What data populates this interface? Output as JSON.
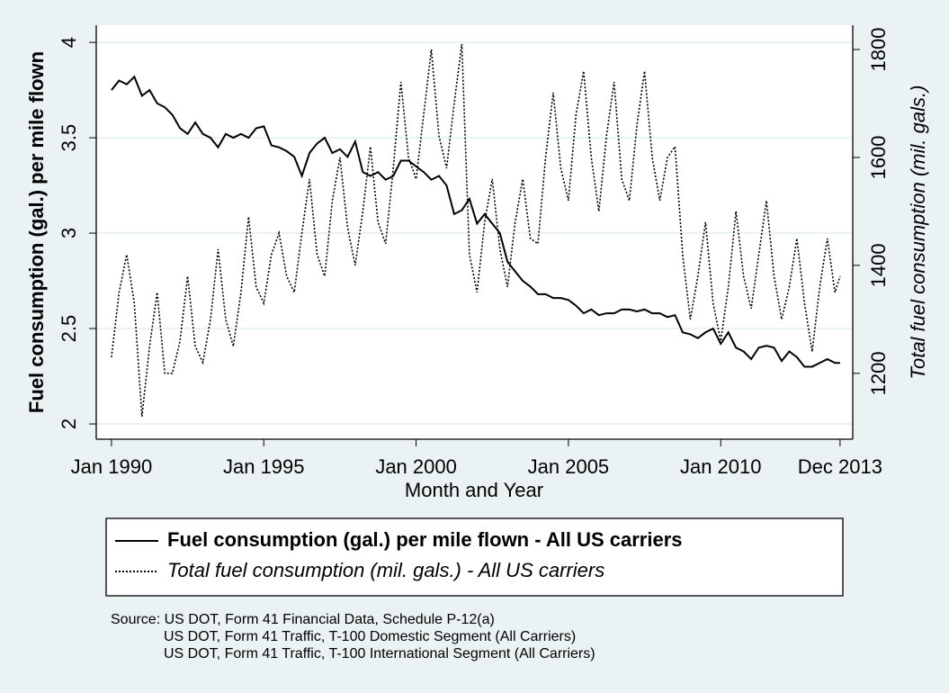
{
  "chart_data": {
    "type": "line",
    "y_label": "Fuel consumption (gal.) per mile flown",
    "y2_label": "Total fuel consumption (mil. gals.)",
    "x_label": "Month and Year",
    "notes": [
      "Source: US DOT, Form 41 Financial Data, Schedule P-12(a)",
      "US DOT, Form 41 Traffic, T-100 Domestic Segment (All Carriers)",
      "US DOT, Form 41 Traffic, T-100 International Segment (All Carriers)"
    ],
    "x": [
      "1990-01",
      "1990-04",
      "1990-07",
      "1990-10",
      "1991-01",
      "1991-04",
      "1991-07",
      "1991-10",
      "1992-01",
      "1992-04",
      "1992-07",
      "1992-10",
      "1993-01",
      "1993-04",
      "1993-07",
      "1993-10",
      "1994-01",
      "1994-04",
      "1994-07",
      "1994-10",
      "1995-01",
      "1995-04",
      "1995-07",
      "1995-10",
      "1996-01",
      "1996-04",
      "1996-07",
      "1996-10",
      "1997-01",
      "1997-04",
      "1997-07",
      "1997-10",
      "1998-01",
      "1998-04",
      "1998-07",
      "1998-10",
      "1999-01",
      "1999-04",
      "1999-07",
      "1999-10",
      "2000-01",
      "2000-04",
      "2000-07",
      "2000-10",
      "2001-01",
      "2001-04",
      "2001-07",
      "2001-10",
      "2002-01",
      "2002-04",
      "2002-07",
      "2002-10",
      "2003-01",
      "2003-04",
      "2003-07",
      "2003-10",
      "2004-01",
      "2004-04",
      "2004-07",
      "2004-10",
      "2005-01",
      "2005-04",
      "2005-07",
      "2005-10",
      "2006-01",
      "2006-04",
      "2006-07",
      "2006-10",
      "2007-01",
      "2007-04",
      "2007-07",
      "2007-10",
      "2008-01",
      "2008-04",
      "2008-07",
      "2008-10",
      "2009-01",
      "2009-04",
      "2009-07",
      "2009-10",
      "2010-01",
      "2010-04",
      "2010-07",
      "2010-10",
      "2011-01",
      "2011-04",
      "2011-07",
      "2011-10",
      "2012-01",
      "2012-04",
      "2012-07",
      "2012-10",
      "2013-01",
      "2013-04",
      "2013-07",
      "2013-10",
      "2013-12"
    ],
    "series": [
      {
        "name": "Fuel consumption (gal.) per mile flown - All US carriers",
        "color": "#000000",
        "style": "solid",
        "values": [
          3.75,
          3.8,
          3.78,
          3.82,
          3.72,
          3.75,
          3.68,
          3.66,
          3.62,
          3.55,
          3.52,
          3.58,
          3.52,
          3.5,
          3.45,
          3.52,
          3.5,
          3.52,
          3.5,
          3.55,
          3.56,
          3.46,
          3.45,
          3.43,
          3.4,
          3.3,
          3.42,
          3.47,
          3.5,
          3.42,
          3.44,
          3.4,
          3.48,
          3.32,
          3.3,
          3.32,
          3.28,
          3.3,
          3.38,
          3.38,
          3.35,
          3.32,
          3.28,
          3.3,
          3.25,
          3.1,
          3.12,
          3.18,
          3.05,
          3.1,
          3.05,
          3.0,
          2.85,
          2.8,
          2.75,
          2.72,
          2.68,
          2.68,
          2.66,
          2.66,
          2.65,
          2.62,
          2.58,
          2.6,
          2.57,
          2.58,
          2.58,
          2.6,
          2.6,
          2.59,
          2.6,
          2.58,
          2.58,
          2.56,
          2.57,
          2.48,
          2.47,
          2.45,
          2.48,
          2.5,
          2.42,
          2.48,
          2.4,
          2.38,
          2.34,
          2.4,
          2.41,
          2.4,
          2.33,
          2.38,
          2.35,
          2.3,
          2.3,
          2.32,
          2.34,
          2.32,
          2.32
        ]
      },
      {
        "name": "Total fuel consumption (mil. gals.) - All US carriers",
        "color": "#000000",
        "style": "dotted",
        "axis": "y2",
        "values": [
          1230,
          1350,
          1420,
          1330,
          1120,
          1250,
          1350,
          1200,
          1200,
          1260,
          1380,
          1250,
          1220,
          1300,
          1430,
          1300,
          1250,
          1350,
          1490,
          1360,
          1330,
          1420,
          1460,
          1380,
          1350,
          1460,
          1560,
          1420,
          1380,
          1520,
          1600,
          1470,
          1400,
          1500,
          1620,
          1480,
          1440,
          1580,
          1740,
          1600,
          1560,
          1680,
          1800,
          1640,
          1580,
          1700,
          1810,
          1420,
          1350,
          1480,
          1560,
          1430,
          1360,
          1480,
          1560,
          1450,
          1440,
          1600,
          1720,
          1580,
          1520,
          1680,
          1760,
          1600,
          1500,
          1640,
          1740,
          1560,
          1520,
          1660,
          1760,
          1600,
          1520,
          1600,
          1620,
          1420,
          1300,
          1380,
          1480,
          1330,
          1260,
          1360,
          1500,
          1380,
          1320,
          1420,
          1520,
          1380,
          1300,
          1360,
          1450,
          1330,
          1240,
          1360,
          1450,
          1350,
          1380
        ]
      }
    ],
    "xlim": [
      "1989-07",
      "2014-05"
    ],
    "xticks": [
      {
        "value": "1990-01",
        "label": "Jan 1990"
      },
      {
        "value": "1995-01",
        "label": "Jan 1995"
      },
      {
        "value": "2000-01",
        "label": "Jan 2000"
      },
      {
        "value": "2005-01",
        "label": "Jan 2005"
      },
      {
        "value": "2010-01",
        "label": "Jan 2010"
      },
      {
        "value": "2013-12",
        "label": "Dec 2013"
      }
    ],
    "ylim": [
      1.92,
      4.09
    ],
    "yticks": [
      2,
      2.5,
      3,
      3.5,
      4
    ],
    "y2lim": [
      1078,
      1845
    ],
    "y2ticks": [
      1200,
      1400,
      1600,
      1800
    ],
    "grid": true
  }
}
